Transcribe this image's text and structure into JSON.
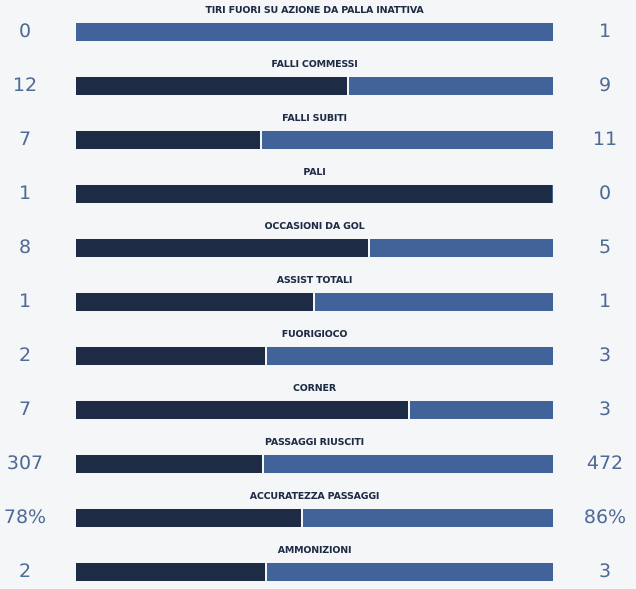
{
  "stats": [
    {
      "label": "TIRI FUORI SU AZIONE DA PALLA INATTIVA",
      "home": 0,
      "away": 1
    },
    {
      "label": "FALLI COMMESSI",
      "home": 12,
      "away": 9
    },
    {
      "label": "FALLI SUBITI",
      "home": 7,
      "away": 11
    },
    {
      "label": "PALI",
      "home": 1,
      "away": 0
    },
    {
      "label": "OCCASIONI DA GOL",
      "home": 8,
      "away": 5
    },
    {
      "label": "ASSIST TOTALI",
      "home": 1,
      "away": 1
    },
    {
      "label": "FUORIGIOCO",
      "home": 2,
      "away": 3
    },
    {
      "label": "CORNER",
      "home": 7,
      "away": 3
    },
    {
      "label": "PASSAGGI RIUSCITI",
      "home": 307,
      "away": 472
    },
    {
      "label": "ACCURATEZZA PASSAGGI",
      "home": 78,
      "away": 86,
      "home_label": "78%",
      "away_label": "86%"
    },
    {
      "label": "AMMONIZIONI",
      "home": 2,
      "away": 3
    }
  ]
}
